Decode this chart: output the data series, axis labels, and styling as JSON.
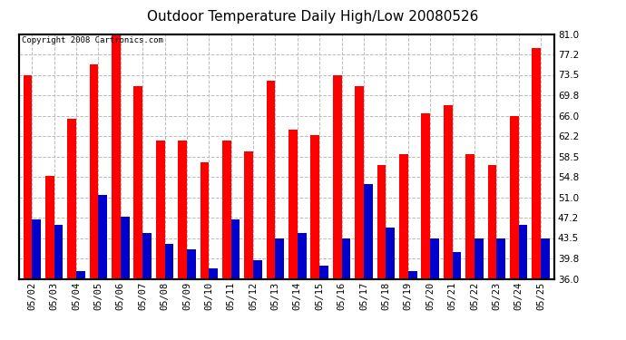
{
  "title": "Outdoor Temperature Daily High/Low 20080526",
  "copyright": "Copyright 2008 Cartronics.com",
  "dates": [
    "05/02",
    "05/03",
    "05/04",
    "05/05",
    "05/06",
    "05/07",
    "05/08",
    "05/09",
    "05/10",
    "05/11",
    "05/12",
    "05/13",
    "05/14",
    "05/15",
    "05/16",
    "05/17",
    "05/18",
    "05/19",
    "05/20",
    "05/21",
    "05/22",
    "05/23",
    "05/24",
    "05/25"
  ],
  "highs": [
    73.5,
    55.0,
    65.5,
    75.5,
    81.0,
    71.5,
    61.5,
    61.5,
    57.5,
    61.5,
    59.5,
    72.5,
    63.5,
    62.5,
    73.5,
    71.5,
    57.0,
    59.0,
    66.5,
    68.0,
    59.0,
    57.0,
    66.0,
    78.5
  ],
  "lows": [
    47.0,
    46.0,
    37.5,
    51.5,
    47.5,
    44.5,
    42.5,
    41.5,
    38.0,
    47.0,
    39.5,
    43.5,
    44.5,
    38.5,
    43.5,
    53.5,
    45.5,
    37.5,
    43.5,
    41.0,
    43.5,
    43.5,
    46.0,
    43.5
  ],
  "high_color": "#ff0000",
  "low_color": "#0000cc",
  "bg_color": "#ffffff",
  "grid_color": "#bbbbbb",
  "ylim": [
    36.0,
    81.0
  ],
  "yticks": [
    36.0,
    39.8,
    43.5,
    47.2,
    51.0,
    54.8,
    58.5,
    62.2,
    66.0,
    69.8,
    73.5,
    77.2,
    81.0
  ],
  "title_fontsize": 11,
  "copyright_fontsize": 6.5,
  "tick_fontsize": 7.5
}
